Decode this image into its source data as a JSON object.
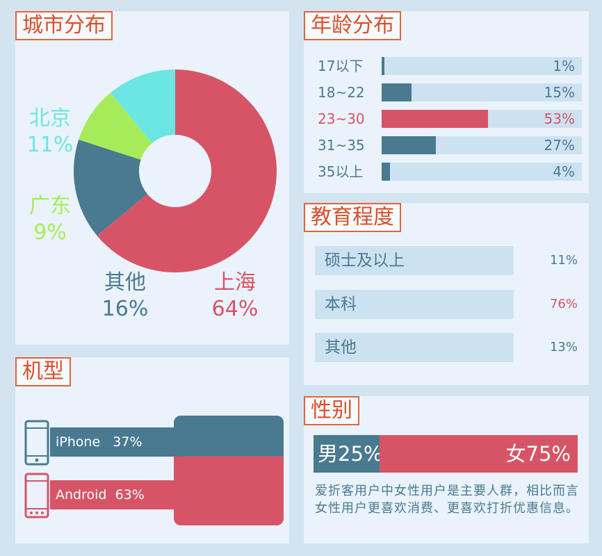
{
  "colors": {
    "red": "#d75467",
    "teal": "#4a7a8f",
    "cyan": "#6ce6e2",
    "green": "#a6ec5a",
    "track": "#cde2f1",
    "title": "#d9502b"
  },
  "city": {
    "title": "城市分布"
  },
  "age": {
    "title": "年龄分布"
  },
  "education": {
    "title": "教育程度"
  },
  "device": {
    "title": "机型"
  },
  "gender": {
    "title": "性别",
    "note": "爱折客用户中女性用户是主要人群，相比而言女性用户更喜欢消费、更喜欢打折优惠信息。"
  },
  "chart_data": [
    {
      "type": "pie",
      "title": "城市分布",
      "slices": [
        {
          "name": "上海",
          "value": 64,
          "label": "64%",
          "color": "#d75467"
        },
        {
          "name": "其他",
          "value": 16,
          "label": "16%",
          "color": "#4a7a8f"
        },
        {
          "name": "广东",
          "value": 9,
          "label": "9%",
          "color": "#a6ec5a"
        },
        {
          "name": "北京",
          "value": 11,
          "label": "11%",
          "color": "#6ce6e2"
        }
      ]
    },
    {
      "type": "bar",
      "title": "年龄分布",
      "categories": [
        "17以下",
        "18~22",
        "23~30",
        "31~35",
        "35以上"
      ],
      "values": [
        1,
        15,
        53,
        27,
        4
      ],
      "labels": [
        "1%",
        "15%",
        "53%",
        "27%",
        "4%"
      ],
      "highlight": "23~30"
    },
    {
      "type": "table",
      "title": "教育程度",
      "categories": [
        "硕士及以上",
        "本科",
        "其他"
      ],
      "values": [
        11,
        76,
        13
      ],
      "labels": [
        "11%",
        "76%",
        "13%"
      ]
    },
    {
      "type": "bar",
      "title": "机型",
      "categories": [
        "iPhone",
        "Android"
      ],
      "values": [
        37,
        63
      ],
      "labels": [
        "37%",
        "63%"
      ]
    },
    {
      "type": "bar",
      "title": "性别",
      "categories": [
        "男",
        "女"
      ],
      "values": [
        25,
        75
      ],
      "labels": [
        "25%",
        "75%"
      ]
    }
  ]
}
